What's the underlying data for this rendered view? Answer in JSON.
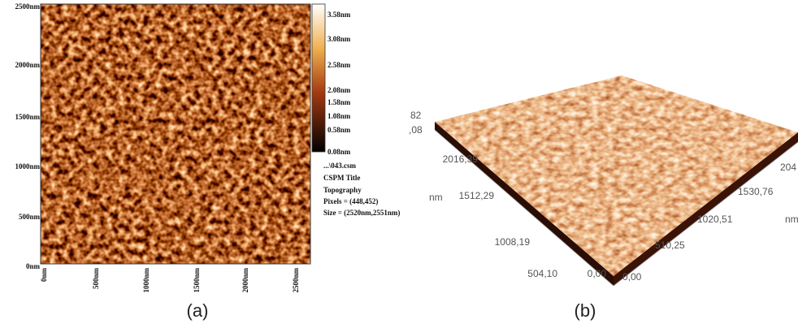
{
  "panel_a": {
    "y_labels": [
      "2500nm",
      "2000nm",
      "1500nm",
      "1000nm",
      "500nm",
      "0nm"
    ],
    "x_labels": [
      "0nm",
      "500nm",
      "1000nm",
      "1500nm",
      "2000nm",
      "2500nm"
    ],
    "colorbar_labels": [
      "3.58nm",
      "3.08nm",
      "2.58nm",
      "2.08nm",
      "1.58nm",
      "1.08nm",
      "0.58nm",
      "0.08nm"
    ],
    "info": [
      "...\\043.csm",
      "CSPM Title",
      "Topography",
      "Pixels = (448,452)",
      "Size = (2520nm,2551nm)"
    ],
    "caption": "(a)"
  },
  "panel_b": {
    "corner_labels": [
      "82",
      ",08"
    ],
    "y_labels": [
      "2016,39",
      "1512,29",
      "1008,19",
      "504,10",
      "0,00"
    ],
    "y_unit": "nm",
    "x_labels": [
      "0,00",
      "510,25",
      "1020,51",
      "1530,76",
      "204"
    ],
    "x_unit": "nm",
    "caption": "(b)"
  }
}
